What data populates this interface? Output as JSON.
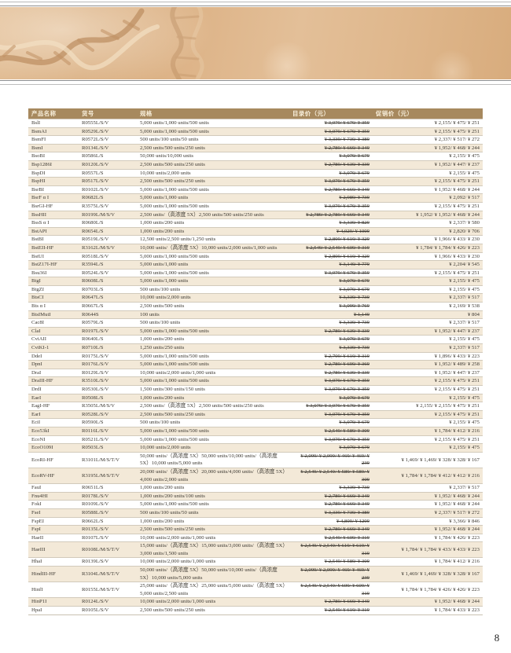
{
  "page": {
    "number": "8"
  },
  "colors": {
    "banner_tan": "#deb58a",
    "table_header_bg": "#a7895e",
    "table_header_fg": "#f8efdb",
    "row_stripe": "#f3e9d8",
    "row_border": "#d2cabb"
  },
  "banner": {
    "art": "dna-double-helix"
  },
  "table": {
    "headers": {
      "name": "产品名称",
      "cat": "货号",
      "spec": "规格",
      "list": "目录价（元）",
      "promo": "促销价（元）"
    },
    "rows": [
      {
        "name": "BslI",
        "cat": "R0555L/S/V",
        "spec": "5,000 units/1,000 units/500 units",
        "list": "¥ 3,079/ ¥ 679/ ¥ 359",
        "promo": "¥ 2,155/ ¥ 475/ ¥ 251"
      },
      {
        "name": "BsmAI",
        "cat": "R0529L/S/V",
        "spec": "5,000 units/1,000 units/500 units",
        "list": "¥ 3,079/ ¥ 679/ ¥ 359",
        "promo": "¥ 2,155/ ¥ 475/ ¥ 251"
      },
      {
        "name": "BsmFI",
        "cat": "R0572L/S/V",
        "spec": "500 units/100 units/50 units",
        "list": "¥ 3,339/ ¥ 739/ ¥ 389",
        "promo": "¥ 2,337/ ¥ 517/ ¥ 272"
      },
      {
        "name": "BsmI",
        "cat": "R0134L/S/V",
        "spec": "2,500 units/500 units/250 units",
        "list": "¥ 2,789/ ¥ 669/ ¥ 349",
        "promo": "¥ 1,952/ ¥ 468/ ¥ 244"
      },
      {
        "name": "BsoBI",
        "cat": "R0586L/S",
        "spec": "50,000 units/10,000 units",
        "list": "¥ 3,079/ ¥ 679",
        "promo": "¥ 2,155/ ¥ 475"
      },
      {
        "name": "Bsp1286I",
        "cat": "R0120L/S/V",
        "spec": "2,500 units/500 units/250 units",
        "list": "¥ 2,789/ ¥ 639/ ¥ 339",
        "promo": "¥ 1,952/ ¥ 447/ ¥ 237"
      },
      {
        "name": "BspDI",
        "cat": "R0557L/S",
        "spec": "10,000 units/2,000 units",
        "list": "¥ 3,079/ ¥ 679",
        "promo": "¥ 2,155/ ¥ 475"
      },
      {
        "name": "BspHI",
        "cat": "R0517L/S/V",
        "spec": "2,500 units/500 units/250 units",
        "list": "¥ 3,079/ ¥ 679/ ¥ 359",
        "promo": "¥ 2,155/ ¥ 475/ ¥ 251"
      },
      {
        "name": "BsrBI",
        "cat": "R0102L/S/V",
        "spec": "5,000 units/1,000 units/500 units",
        "list": "¥ 2,789/ ¥ 669/ ¥ 349",
        "promo": "¥ 1,952/ ¥ 468/ ¥ 244"
      },
      {
        "name": "BsrF α I",
        "cat": "R0682L/S",
        "spec": "5,000 units/1,000 units",
        "list": "¥ 2,989/ ¥ 739",
        "promo": "¥ 2,092/ ¥ 517"
      },
      {
        "name": "BsrGI-HF",
        "cat": "R3575L/S/V",
        "spec": "5,000 units/1,000 units/500 units",
        "list": "¥ 3,079/ ¥ 679/ ¥ 359",
        "promo": "¥ 2,155/ ¥ 475/ ¥ 251"
      },
      {
        "name": "BssHII",
        "cat": "R0199L/M/S/V",
        "spec": "2,500 units/（高浓度 5X）2,500 units/500 units/250 units",
        "list": "¥ 2,789/ ¥ 2,789/ ¥ 669/ ¥ 349",
        "promo": "¥ 1,952/ ¥ 1,952/ ¥ 468/ ¥ 244"
      },
      {
        "name": "BssS α I",
        "cat": "R0680L/S",
        "spec": "1,000 units/200 units",
        "list": "¥ 3,339/ ¥ 829",
        "promo": "¥ 2,337/ ¥ 580"
      },
      {
        "name": "BstAPI",
        "cat": "R0654L/S",
        "spec": "1,000 units/200 units",
        "list": "¥ 4,029/ ¥ 1009",
        "promo": "¥ 2,820/ ¥ 706"
      },
      {
        "name": "BstBI",
        "cat": "R0519L/S/V",
        "spec": "12,500 units/2,500 units/1,250 units",
        "list": "¥ 2,809/ ¥ 619/ ¥ 329",
        "promo": "¥ 1,966/ ¥ 433/ ¥ 230"
      },
      {
        "name": "BstEII-HF",
        "cat": "R3162L/M/S/V",
        "spec": "10,000 units/（高浓度 5X）10,000 units/2,000 units/1,000 units",
        "list": "¥ 2,549/ ¥ 2,549/ ¥ 609/ ¥ 319",
        "promo": "¥ 1,784/ ¥ 1,784/ ¥ 426/ ¥ 223"
      },
      {
        "name": "BstUI",
        "cat": "R0518L/S/V",
        "spec": "5,000 units/1,000 units/500 units",
        "list": "¥ 2,809/ ¥ 619/ ¥ 329",
        "promo": "¥ 1,966/ ¥ 433/ ¥ 230"
      },
      {
        "name": "BstZ17I-HF",
        "cat": "R3594L/S",
        "spec": "5,000 units/1,000 units",
        "list": "¥ 3,149/ ¥ 779",
        "promo": "¥ 2,204/ ¥ 545"
      },
      {
        "name": "Bsu36I",
        "cat": "R0524L/S/V",
        "spec": "5,000 units/1,000 units/500 units",
        "list": "¥ 3,079/ ¥ 679/ ¥ 359",
        "promo": "¥ 2,155/ ¥ 475/ ¥ 251"
      },
      {
        "name": "BtgI",
        "cat": "R0608L/S",
        "spec": "5,000 units/1,000 units",
        "list": "¥ 3,079/ ¥ 679",
        "promo": "¥ 2,155/ ¥ 475"
      },
      {
        "name": "BtgZI",
        "cat": "R0703L/S",
        "spec": "500 units/100 units",
        "list": "¥ 3,079/ ¥ 679",
        "promo": "¥ 2,155/ ¥ 475"
      },
      {
        "name": "BtsCI",
        "cat": "R0647L/S",
        "spec": "10,000 units/2,000 units",
        "list": "¥ 3,339/ ¥ 739",
        "promo": "¥ 2,337/ ¥ 517"
      },
      {
        "name": "Bts α I",
        "cat": "R0667L/S",
        "spec": "2,500 units/500 units",
        "list": "¥ 3,099/ ¥ 769",
        "promo": "¥ 2,169/ ¥ 538"
      },
      {
        "name": "BtsIMutI",
        "cat": "R0644S",
        "spec": "100 units",
        "list": "¥ 1,149",
        "promo": "¥ 804"
      },
      {
        "name": "Cac8I",
        "cat": "R0579L/S",
        "spec": "500 units/100 units",
        "list": "¥ 3,339/ ¥ 739",
        "promo": "¥ 2,337/ ¥ 517"
      },
      {
        "name": "ClaI",
        "cat": "R0197L/S/V",
        "spec": "5,000 units/1,000 units/500 units",
        "list": "¥ 2,789/ ¥ 639/ ¥ 339",
        "promo": "¥ 1,952/ ¥ 447/ ¥ 237"
      },
      {
        "name": "CviAII",
        "cat": "R0640L/S",
        "spec": "1,000 units/200 units",
        "list": "¥ 3,079/ ¥ 679",
        "promo": "¥ 2,155/ ¥ 475"
      },
      {
        "name": "CviKI-1",
        "cat": "R0710L/S",
        "spec": "1,250 units/250 units",
        "list": "¥ 3,339/ ¥ 739",
        "promo": "¥ 2,337/ ¥ 517"
      },
      {
        "name": "DdeI",
        "cat": "R0175L/S/V",
        "spec": "5,000 units/1,000 units/500 units",
        "list": "¥ 2,709/ ¥ 619/ ¥ 319",
        "promo": "¥ 1,896/ ¥ 433/ ¥ 223"
      },
      {
        "name": "DpnI",
        "cat": "R0176L/S/V",
        "spec": "5,000 units/1,000 units/500 units",
        "list": "¥ 2,789/ ¥ 699/ ¥ 369",
        "promo": "¥ 1,952/ ¥ 489/ ¥ 258"
      },
      {
        "name": "DraI",
        "cat": "R0129L/S/V",
        "spec": "10,000 units/2,000 units/1,000 units",
        "list": "¥ 2,789/ ¥ 639/ ¥ 339",
        "promo": "¥ 1,952/ ¥ 447/ ¥ 237"
      },
      {
        "name": "DraIII-HF",
        "cat": "R3510L/S/V",
        "spec": "5,000 units/1,000 units/500 units",
        "list": "¥ 3,079/ ¥ 679/ ¥ 359",
        "promo": "¥ 2,155/ ¥ 475/ ¥ 251"
      },
      {
        "name": "DrdI",
        "cat": "R0530L/S/V",
        "spec": "1,500 units/300 units/150 units",
        "list": "¥ 3,079/ ¥ 679/ ¥ 359",
        "promo": "¥ 2,155/ ¥ 475/ ¥ 251"
      },
      {
        "name": "EaeI",
        "cat": "R0508L/S",
        "spec": "1,000 units/200 units",
        "list": "¥ 3,079/ ¥ 679",
        "promo": "¥ 2,155/ ¥ 475"
      },
      {
        "name": "EagI-HF",
        "cat": "R3505L/M/S/V",
        "spec": "2,500 units/（高浓度 5X）2,500 units/500 units/250 units",
        "list": "¥ 3,079/ ¥ 3,079/ ¥ 679/ ¥ 359",
        "promo": "¥ 2,155/ ¥ 2,155/ ¥ 475/ ¥ 251"
      },
      {
        "name": "EarI",
        "cat": "R0528L/S/V",
        "spec": "2,500 units/500 units/250 units",
        "list": "¥ 3,079/ ¥ 679/ ¥ 359",
        "promo": "¥ 2,155/ ¥ 475/ ¥ 251"
      },
      {
        "name": "EciI",
        "cat": "R0590L/S",
        "spec": "500 units/100 units",
        "list": "¥ 3,079/ ¥ 679",
        "promo": "¥ 2,155/ ¥ 475"
      },
      {
        "name": "Eco53kI",
        "cat": "R0116L/S/V",
        "spec": "5,000 units/1,000 units/500 units",
        "list": "¥ 2,549/ ¥ 589/ ¥ 309",
        "promo": "¥ 1,784/ ¥ 412/ ¥ 216"
      },
      {
        "name": "EcoNI",
        "cat": "R0521L/S/V",
        "spec": "5,000 units/1,000 units/500 units",
        "list": "¥ 3,079/ ¥ 679/ ¥ 359",
        "promo": "¥ 2,155/ ¥ 475/ ¥ 251"
      },
      {
        "name": "EcoO109I",
        "cat": "R0503L/S",
        "spec": "10,000 units/2,000 units",
        "list": "¥ 3,079/ ¥ 679",
        "promo": "¥ 2,155/ ¥ 475"
      },
      {
        "name": "EcoRI-HF",
        "cat": "R3101L/M/S/T/V",
        "spec": "50,000 units/（高浓度 5X）50,000 units/10,000 units/（高浓度 5X）10,000 units/5,000 units",
        "list": "¥ 2,099/ ¥ 2,099/ ¥ 469/ ¥ 469/ ¥ 239",
        "promo": "¥ 1,469/ ¥ 1,469/ ¥ 328/ ¥ 328/ ¥ 167"
      },
      {
        "name": "EcoRV-HF",
        "cat": "R3195L/M/S/T/V",
        "spec": "20,000 units/（高浓度 5X）20,000 units/4,000 units/（高浓度 5X）4,000 units/2,000 units",
        "list": "¥ 2,549/ ¥ 2,549/ ¥ 589/ ¥ 589/ ¥ 309",
        "promo": "¥ 1,784/ ¥ 1,784/ ¥ 412/ ¥ 412/ ¥ 216"
      },
      {
        "name": "FauI",
        "cat": "R0651L/S",
        "spec": "1,000 units/200 units",
        "list": "¥ 3,339/ ¥ 739",
        "promo": "¥ 2,337/ ¥ 517"
      },
      {
        "name": "Fnu4HI",
        "cat": "R0178L/S/V",
        "spec": "1,000 units/200 units/100 units",
        "list": "¥ 2,789/ ¥ 669/ ¥ 349",
        "promo": "¥ 1,952/ ¥ 468/ ¥ 244"
      },
      {
        "name": "FokI",
        "cat": "R0109L/S/V",
        "spec": "5,000 units/1,000 units/500 units",
        "list": "¥ 2,789/ ¥ 669/ ¥ 349",
        "promo": "¥ 1,952/ ¥ 468/ ¥ 244"
      },
      {
        "name": "FseI",
        "cat": "R0588L/S/V",
        "spec": "500 units/100 units/50 units",
        "list": "¥ 3,339/ ¥ 739/ ¥ 389",
        "promo": "¥ 2,337/ ¥ 517/ ¥ 272"
      },
      {
        "name": "FspEI",
        "cat": "R0662L/S",
        "spec": "1,000 units/200 units",
        "list": "¥ 4,809/ ¥ 1209",
        "promo": "¥ 3,366/ ¥ 846"
      },
      {
        "name": "FspI",
        "cat": "R0135L/S/V",
        "spec": "2,500 units/500 units/250 units",
        "list": "¥ 2,789/ ¥ 669/ ¥ 349",
        "promo": "¥ 1,952/ ¥ 468/ ¥ 244"
      },
      {
        "name": "HaeII",
        "cat": "R0107L/S/V",
        "spec": "10,000 units/2,000 units/1,000 units",
        "list": "¥ 2,549/ ¥ 609/ ¥ 319",
        "promo": "¥ 1,784/ ¥ 426/ ¥ 223"
      },
      {
        "name": "HaeIII",
        "cat": "R0108L/M/S/T/V",
        "spec": "15,000 units/（高浓度 5X）15,000 units/3,000 units/（高浓度 5X）3,000 units/1,500 units",
        "list": "¥ 2,549/ ¥ 2,549/ ¥ 619/ ¥ 619/ ¥ 319",
        "promo": "¥ 1,784/ ¥ 1,784/ ¥ 433/ ¥ 433/ ¥ 223"
      },
      {
        "name": "HhaI",
        "cat": "R0139L/S/V",
        "spec": "10,000 units/2,000 units/1,000 units",
        "list": "¥ 2,549/ ¥ 589/ ¥ 309",
        "promo": "¥ 1,784/ ¥ 412/ ¥ 216"
      },
      {
        "name": "HindIII-HF",
        "cat": "R3104L/M/S/T/V",
        "spec": "50,000 units/（高浓度 5X）50,000 units/10,000 units/（高浓度 5X）10,000 units/5,000 units",
        "list": "¥ 2,099/ ¥ 2,099/ ¥ 469/ ¥ 469/ ¥ 239",
        "promo": "¥ 1,469/ ¥ 1,469/ ¥ 328/ ¥ 328/ ¥ 167"
      },
      {
        "name": "HinfI",
        "cat": "R0155L/M/S/T/V",
        "spec": "25,000 units/（高浓度 5X）25,000 units/5,000 units/（高浓度 5X）5,000 units/2,500 units",
        "list": "¥ 2,549/ ¥ 2,549/ ¥ 609/ ¥ 609/ ¥ 319",
        "promo": "¥ 1,784/ ¥ 1,784/ ¥ 426/ ¥ 426/ ¥ 223"
      },
      {
        "name": "HinP1I",
        "cat": "R0124L/S/V",
        "spec": "10,000 units/2,000 units/1,000 units",
        "list": "¥ 2,789/ ¥ 669/ ¥ 349",
        "promo": "¥ 1,952/ ¥ 468/ ¥ 244"
      },
      {
        "name": "HpaI",
        "cat": "R0105L/S/V",
        "spec": "2,500 units/500 units/250 units",
        "list": "¥ 2,549/ ¥ 619/ ¥ 319",
        "promo": "¥ 1,784/ ¥ 433/ ¥ 223"
      }
    ]
  }
}
